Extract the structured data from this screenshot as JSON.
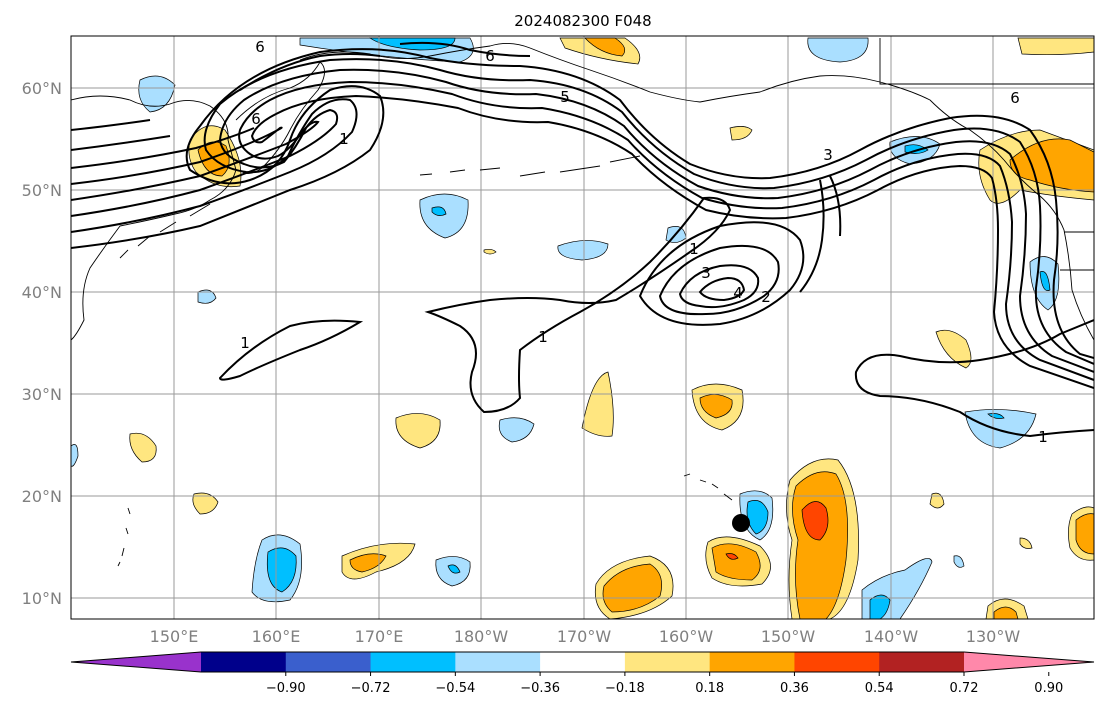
{
  "title": "2024082300 F048",
  "lat_labels": [
    "60°N",
    "50°N",
    "40°N",
    "30°N",
    "20°N",
    "10°N"
  ],
  "lon_labels": [
    "150°E",
    "160°E",
    "170°E",
    "180°W",
    "170°W",
    "160°W",
    "150°W",
    "140°W",
    "130°W"
  ],
  "colorbar": {
    "ticks": [
      "−0.90",
      "−0.72",
      "−0.54",
      "−0.36",
      "−0.18",
      "0.18",
      "0.36",
      "0.54",
      "0.72",
      "0.90"
    ],
    "colors": [
      "#9932cc",
      "#00008b",
      "#3a5fcd",
      "#00bfff",
      "#aadfff",
      "#ffffff",
      "#ffe680",
      "#ffa500",
      "#ff4500",
      "#b22222",
      "#ff88aa"
    ]
  },
  "contour_labels": [
    "6",
    "6",
    "6",
    "6",
    "1",
    "5",
    "3",
    "1",
    "3",
    "4",
    "2",
    "1",
    "1",
    "1"
  ],
  "colors": {
    "light_blue": "#aadfff",
    "blue": "#00bfff",
    "yellow": "#ffe680",
    "orange": "#ffa500",
    "red_orange": "#ff4500",
    "grid": "#9a9a9a"
  }
}
